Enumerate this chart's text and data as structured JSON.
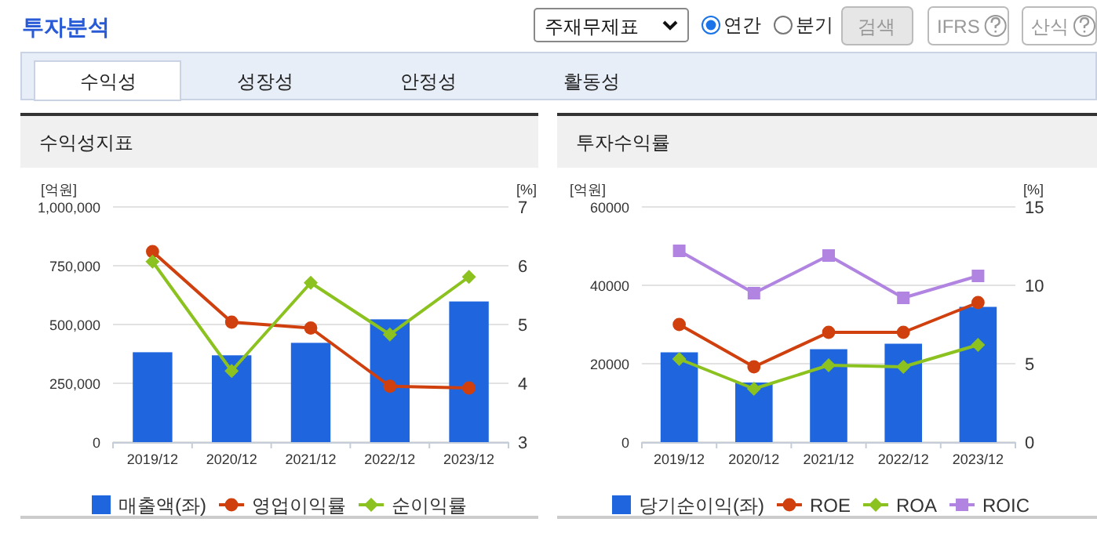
{
  "chart_data": [
    {
      "type": "other",
      "title": "투자분석",
      "annotations": [
        "주재무제표",
        "연간",
        "분기",
        "검색",
        "IFRS",
        "산식",
        "수익성",
        "성장성",
        "안정성",
        "활동성"
      ]
    },
    {
      "type": "bar",
      "title": "수익성지표",
      "ylabel": "[억원]",
      "y2label": "[%]",
      "categories": [
        "2019/12",
        "2020/12",
        "2021/12",
        "2022/12",
        "2023/12"
      ],
      "ylim": [
        0,
        1000000
      ],
      "yticks": [
        0,
        {
          "value": 250000,
          "label": "250,000"
        },
        {
          "value": 500000,
          "label": "500,000"
        },
        {
          "value": 750000,
          "label": "750,000"
        },
        {
          "value": 1000000,
          "label": "1,000,000"
        }
      ],
      "y2lim": [
        3,
        7
      ],
      "y2ticks": [
        3,
        4,
        5,
        6,
        7
      ],
      "grid": "y",
      "legend": "bottom",
      "series": [
        {
          "name": "매출액(좌)",
          "color": "#1f66de",
          "values": [
            382000,
            369000,
            422000,
            522000,
            598000
          ]
        },
        {
          "name": "영업이익률",
          "type": "line",
          "axis": "y2",
          "marker": "circle",
          "color": "#d0400e",
          "values": [
            6.24,
            5.04,
            4.94,
            3.95,
            3.92
          ]
        },
        {
          "name": "순이익률",
          "type": "line",
          "axis": "y2",
          "marker": "diamond",
          "color": "#8cc21f",
          "values": [
            6.07,
            4.21,
            5.71,
            4.83,
            5.81
          ]
        }
      ]
    },
    {
      "type": "bar",
      "title": "투자수익률",
      "ylabel": "[억원]",
      "y2label": "[%]",
      "categories": [
        "2019/12",
        "2020/12",
        "2021/12",
        "2022/12",
        "2023/12"
      ],
      "ylim": [
        0,
        60000
      ],
      "yticks": [
        0,
        20000,
        40000,
        60000
      ],
      "y2lim": [
        0,
        15
      ],
      "y2ticks": [
        0,
        5,
        10,
        15
      ],
      "grid": "y",
      "legend": "bottom",
      "series": [
        {
          "name": "당기순이익(좌)",
          "color": "#1f66de",
          "values": [
            22900,
            15200,
            23700,
            25100,
            34500
          ]
        },
        {
          "name": "ROE",
          "type": "line",
          "axis": "y2",
          "marker": "circle",
          "color": "#d0400e",
          "values": [
            7.5,
            4.8,
            7.0,
            7.0,
            8.9
          ]
        },
        {
          "name": "ROA",
          "type": "line",
          "axis": "y2",
          "marker": "diamond",
          "color": "#8cc21f",
          "values": [
            5.3,
            3.4,
            4.9,
            4.8,
            6.2
          ]
        },
        {
          "name": "ROIC",
          "type": "line",
          "axis": "y2",
          "marker": "square",
          "color": "#b084e0",
          "values": [
            12.2,
            9.5,
            11.9,
            9.2,
            10.6
          ]
        }
      ]
    }
  ]
}
